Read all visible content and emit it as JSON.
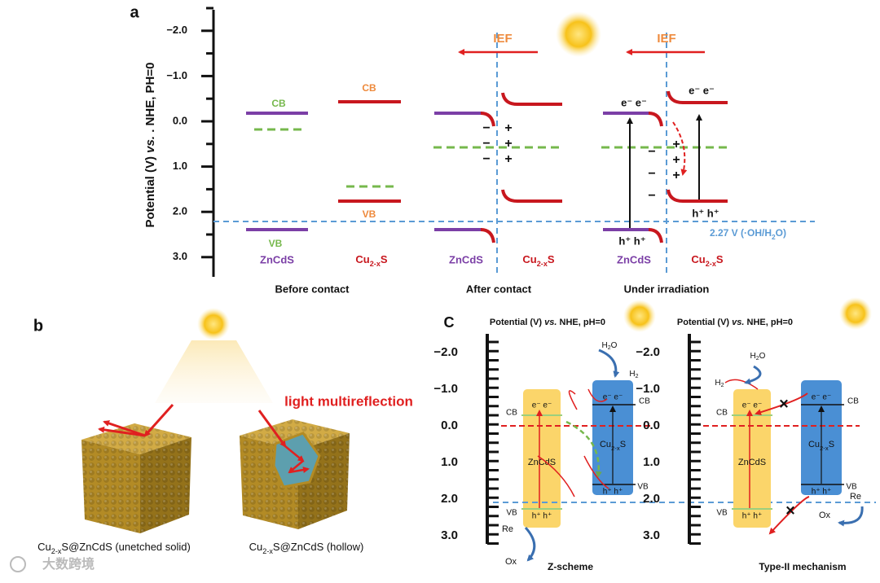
{
  "panel_a": {
    "label": "a",
    "axis_title": {
      "pre": "Potential (V) ",
      "italic": "vs.",
      "post": " . NHE, PH=0"
    },
    "ticks": [
      "−2.0",
      "−1.0",
      "0.0",
      "1.0",
      "2.0",
      "3.0"
    ],
    "before": {
      "caption": "Before contact",
      "zncds_cb": "CB",
      "zncds_vb": "VB",
      "zncds": "ZnCdS",
      "cu_cb": "CB",
      "cu_vb": "VB",
      "cu": {
        "pre": "Cu",
        "sub": "2-x",
        "post": "S"
      }
    },
    "after": {
      "caption": "After contact",
      "ief": "IEF",
      "zncds": "ZnCdS",
      "cu": {
        "pre": "Cu",
        "sub": "2-x",
        "post": "S"
      },
      "minus": [
        "−",
        "−",
        "−"
      ],
      "plus": [
        "+",
        "+",
        "+"
      ]
    },
    "irradiation": {
      "caption": "Under irradiation",
      "ief": "IEF",
      "zncds": "ZnCdS",
      "cu": {
        "pre": "Cu",
        "sub": "2-x",
        "post": "S"
      },
      "electrons": [
        "e⁻ e⁻",
        "e⁻ e⁻"
      ],
      "holes": [
        "h⁺ h⁺",
        "h⁺ h⁺"
      ],
      "minus": [
        "−",
        "−",
        "−"
      ],
      "plus": [
        "+",
        "+",
        "+"
      ],
      "potential": {
        "pre": "2.27 V (·OH/H",
        "sub": "2",
        "post": "O)"
      }
    }
  },
  "panel_b": {
    "label": "b",
    "annotation": "light multireflection",
    "captions": [
      {
        "pre": "Cu",
        "sub": "2-x",
        "post": "S@ZnCdS (unetched solid)"
      },
      {
        "pre": "Cu",
        "sub": "2-x",
        "post": "S@ZnCdS (hollow)"
      }
    ]
  },
  "panel_c": {
    "label": "C",
    "schemes": [
      {
        "axis_title": {
          "pre": "Potential (V) ",
          "italic": "vs.",
          "post": " NHE, pH=0"
        },
        "ticks": [
          "−2.0",
          "−1.0",
          "0.0",
          "1.0",
          "2.0",
          "3.0"
        ],
        "zncds_cb": "CB",
        "zncds_vb": "VB",
        "cu_cb": "CB",
        "cu_vb": "VB",
        "zncds": "ZnCdS",
        "cu": {
          "pre": "Cu",
          "sub": "2-x",
          "post": "S"
        },
        "electrons": [
          "e⁻ e⁻",
          "e⁻ e⁻"
        ],
        "holes": [
          "h⁺ h⁺",
          "h⁺ h⁺"
        ],
        "h2o": {
          "pre": "H",
          "sub": "2",
          "post": "O"
        },
        "h2": {
          "pre": "H",
          "sub": "2"
        },
        "re": "Re",
        "ox": "Ox",
        "caption": "Z-scheme"
      },
      {
        "axis_title": {
          "pre": "Potential (V) ",
          "italic": "vs.",
          "post": " NHE, pH=0"
        },
        "ticks": [
          "−2.0",
          "−1.0",
          "0.0",
          "1.0",
          "2.0",
          "3.0"
        ],
        "zncds_cb": "CB",
        "zncds_vb": "VB",
        "cu_cb": "CB",
        "cu_vb": "VB",
        "zncds": "ZnCdS",
        "cu": {
          "pre": "Cu",
          "sub": "2-x",
          "post": "S"
        },
        "electrons": [
          "e⁻ e⁻",
          "e⁻ e⁻"
        ],
        "holes": [
          "h⁺ h⁺",
          "h⁺ h⁺"
        ],
        "h2o": {
          "pre": "H",
          "sub": "2",
          "post": "O"
        },
        "h2": {
          "pre": "H",
          "sub": "2"
        },
        "re": "Re",
        "ox": "Ox",
        "blocked": [
          "×",
          "×"
        ],
        "caption": "Type-II mechanism"
      }
    ]
  },
  "watermark": "大数跨境"
}
